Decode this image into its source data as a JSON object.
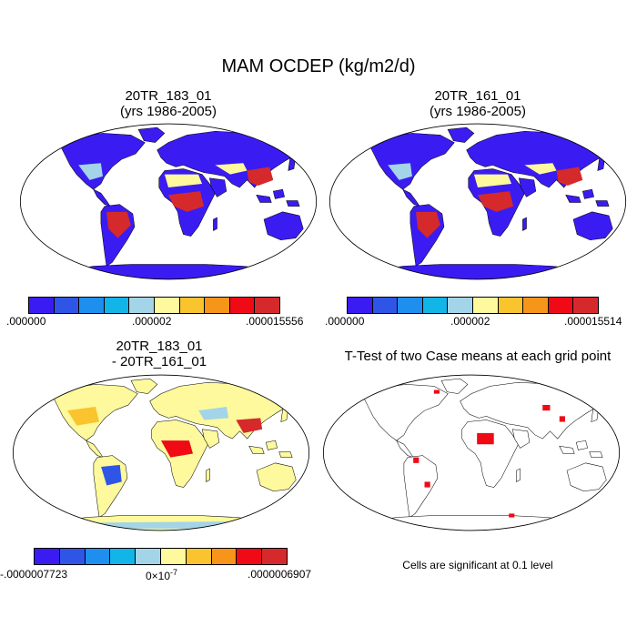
{
  "title": "MAM OCDEP (kg/m2/d)",
  "panels": [
    {
      "title_line1": "20TR_183_01",
      "title_line2": "(yrs 1986-2005)"
    },
    {
      "title_line1": "20TR_161_01",
      "title_line2": "(yrs 1986-2005)"
    },
    {
      "title_line1": "20TR_183_01",
      "title_line2": "- 20TR_161_01"
    },
    {
      "title_line1": "T-Test of two Case means at each grid point"
    }
  ],
  "colorbars": [
    {
      "labels": [
        ".000000",
        ".000002",
        ".000015556"
      ],
      "colors": [
        "#3a1cf2",
        "#2f55e6",
        "#1e8fef",
        "#12b5e8",
        "#a3d4e8",
        "#fdf99c",
        "#f9c42d",
        "#f7951a",
        "#ef0a15",
        "#d6292b"
      ]
    },
    {
      "labels": [
        ".000000",
        ".000002",
        ".000015514"
      ],
      "colors": [
        "#3a1cf2",
        "#2f55e6",
        "#1e8fef",
        "#12b5e8",
        "#a3d4e8",
        "#fdf99c",
        "#f9c42d",
        "#f7951a",
        "#ef0a15",
        "#d6292b"
      ]
    },
    {
      "labels": [
        "-.0000007723",
        "0×10",
        "-7",
        ".0000006907"
      ],
      "colors": [
        "#3a1cf2",
        "#2f55e6",
        "#1e8fef",
        "#12b5e8",
        "#a3d4e8",
        "#fdf99c",
        "#f9c42d",
        "#f7951a",
        "#ef0a15",
        "#d6292b"
      ]
    }
  ],
  "footnote": "Cells are significant at 0.1 level"
}
